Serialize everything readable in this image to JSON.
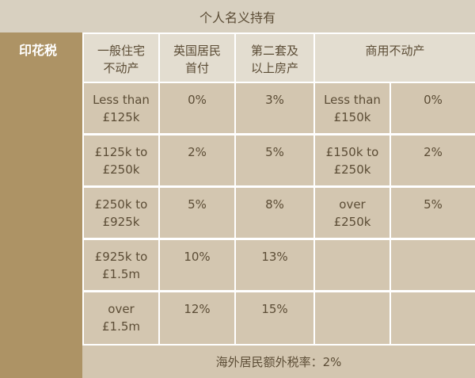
{
  "title": "个人名义持有",
  "side_label": "印花税",
  "headers": {
    "residential": [
      "一般住宅",
      "不动产"
    ],
    "first_time": [
      "英国居民",
      "首付"
    ],
    "second_home": [
      "第二套及",
      "以上房产"
    ],
    "commercial": "商用不动产"
  },
  "rows": [
    {
      "band": [
        "Less than",
        "£125k"
      ],
      "first": "0%",
      "second": "3%",
      "com_band": [
        "Less than",
        "£150k"
      ],
      "com_rate": "0%"
    },
    {
      "band": [
        "£125k to",
        "£250k"
      ],
      "first": "2%",
      "second": "5%",
      "com_band": [
        "£150k to",
        "£250k"
      ],
      "com_rate": "2%"
    },
    {
      "band": [
        "£250k to",
        "£925k"
      ],
      "first": "5%",
      "second": "8%",
      "com_band": [
        "over",
        "£250k"
      ],
      "com_rate": "5%"
    },
    {
      "band": [
        "£925k to",
        "£1.5m"
      ],
      "first": "10%",
      "second": "13%",
      "com_band": [
        "",
        ""
      ],
      "com_rate": ""
    },
    {
      "band": [
        "over",
        "£1.5m"
      ],
      "first": "12%",
      "second": "15%",
      "com_band": [
        "",
        ""
      ],
      "com_rate": ""
    }
  ],
  "footer": "海外居民额外税率：2%"
}
